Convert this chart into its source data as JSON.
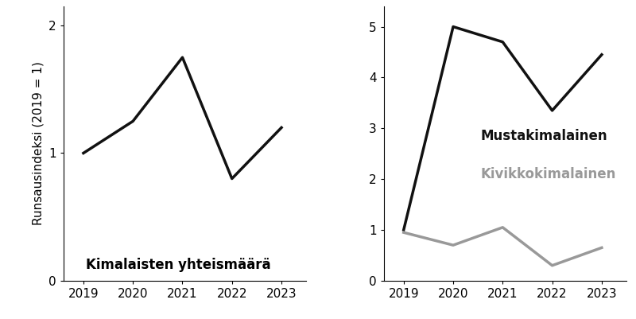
{
  "left_chart": {
    "years": [
      2019,
      2020,
      2021,
      2022,
      2023
    ],
    "values": [
      1.0,
      1.25,
      1.75,
      0.8,
      1.2
    ],
    "ylabel": "Runsausindeksi (2019 = 1)",
    "label": "Kimalaisten yhteismäärä",
    "color": "#111111",
    "ylim": [
      0,
      2.15
    ],
    "yticks": [
      0,
      1,
      2
    ],
    "linewidth": 2.5
  },
  "right_chart": {
    "years": [
      2019,
      2020,
      2021,
      2022,
      2023
    ],
    "mustakimalainen": [
      1.0,
      5.0,
      4.7,
      3.35,
      4.45
    ],
    "kivikkokimalainen": [
      0.95,
      0.7,
      1.05,
      0.3,
      0.65
    ],
    "mustakimalainen_label": "Mustakimalainen",
    "kivikkokimalainen_label": "Kivikkokimalainen",
    "mustakimalainen_color": "#111111",
    "kivikkokimalainen_color": "#999999",
    "ylim": [
      0,
      5.4
    ],
    "yticks": [
      0,
      1,
      2,
      3,
      4,
      5
    ],
    "linewidth": 2.5
  },
  "background_color": "#ffffff",
  "tick_fontsize": 11,
  "label_fontsize": 11,
  "annotation_fontsize": 12
}
